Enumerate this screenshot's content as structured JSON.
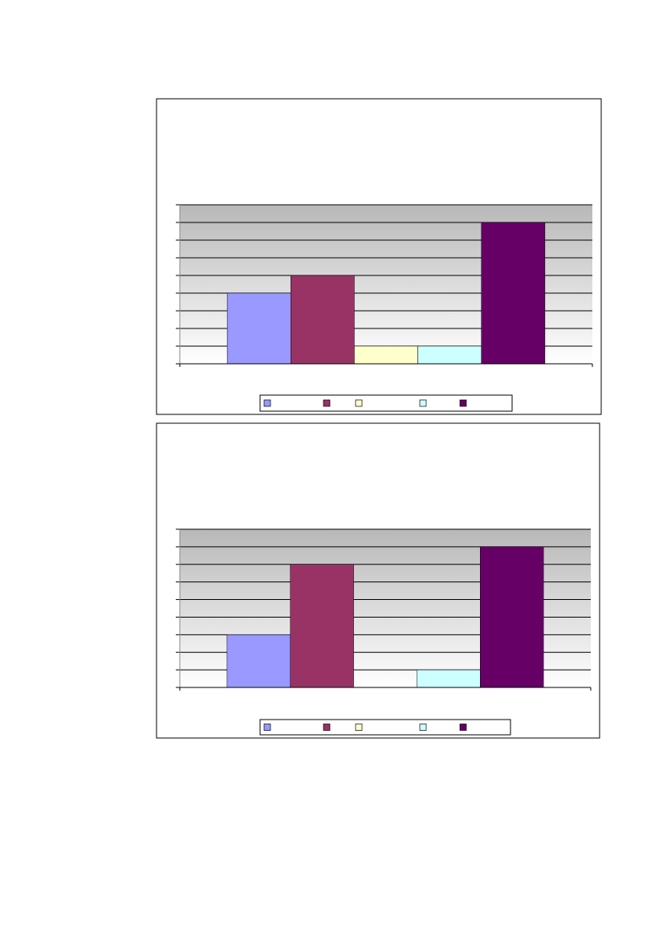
{
  "chart_data": [
    {
      "type": "bar",
      "ylim": [
        0,
        9
      ],
      "yticks": [
        0,
        1,
        2,
        3,
        4,
        5,
        6,
        7,
        8,
        9
      ],
      "grid": true,
      "series": [
        {
          "color": "#9999ff",
          "values": [
            4
          ]
        },
        {
          "color": "#993366",
          "values": [
            5
          ]
        },
        {
          "color": "#ffffcc",
          "values": [
            1
          ]
        },
        {
          "color": "#ccffff",
          "values": [
            1
          ]
        },
        {
          "color": "#660066",
          "values": [
            8
          ]
        }
      ]
    },
    {
      "type": "bar",
      "ylim": [
        0,
        9
      ],
      "yticks": [
        0,
        1,
        2,
        3,
        4,
        5,
        6,
        7,
        8,
        9
      ],
      "grid": true,
      "series": [
        {
          "color": "#9999ff",
          "values": [
            3
          ]
        },
        {
          "color": "#993366",
          "values": [
            7
          ]
        },
        {
          "color": "#ffffcc",
          "values": [
            0
          ]
        },
        {
          "color": "#ccffff",
          "values": [
            1
          ]
        },
        {
          "color": "#660066",
          "values": [
            8
          ]
        }
      ]
    }
  ]
}
